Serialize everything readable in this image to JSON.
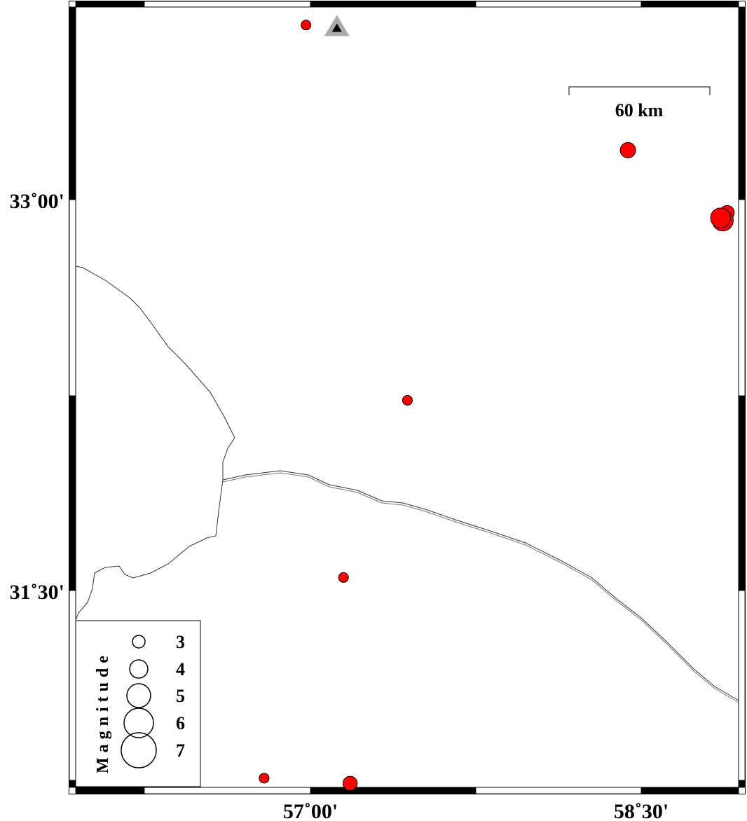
{
  "map": {
    "axes": {
      "x_ticks": [
        {
          "lon": 57.0,
          "label": "57˚00'"
        },
        {
          "lon": 58.5,
          "label": "58˚30'"
        }
      ],
      "y_ticks": [
        {
          "lat": 33.0,
          "label": "33˚00'"
        },
        {
          "lat": 31.5,
          "label": "31˚30'"
        }
      ]
    },
    "scale_bar": {
      "label": "60 km"
    },
    "station": {
      "lon": 57.12,
      "lat": 33.66,
      "icon": "triangle-icon",
      "color": "#aaaaaa"
    },
    "event_color": "#ff0000",
    "events": [
      {
        "lon": 56.98,
        "lat": 33.67,
        "mag": 2.5
      },
      {
        "lon": 58.44,
        "lat": 33.19,
        "mag": 3.5
      },
      {
        "lon": 58.89,
        "lat": 32.95,
        "mag": 3.3
      },
      {
        "lon": 58.87,
        "lat": 32.92,
        "mag": 4.5
      },
      {
        "lon": 58.86,
        "lat": 32.93,
        "mag": 4.3
      },
      {
        "lon": 57.44,
        "lat": 32.23,
        "mag": 2.5
      },
      {
        "lon": 57.15,
        "lat": 31.55,
        "mag": 2.5
      },
      {
        "lon": 56.79,
        "lat": 30.78,
        "mag": 2.5
      },
      {
        "lon": 57.18,
        "lat": 30.76,
        "mag": 3.3
      }
    ],
    "legend": {
      "title": "Magnitude",
      "entries": [
        {
          "mag": 3,
          "label": "3"
        },
        {
          "mag": 4,
          "label": "4"
        },
        {
          "mag": 5,
          "label": "5"
        },
        {
          "mag": 6,
          "label": "6"
        },
        {
          "mag": 7,
          "label": "7"
        }
      ]
    }
  }
}
